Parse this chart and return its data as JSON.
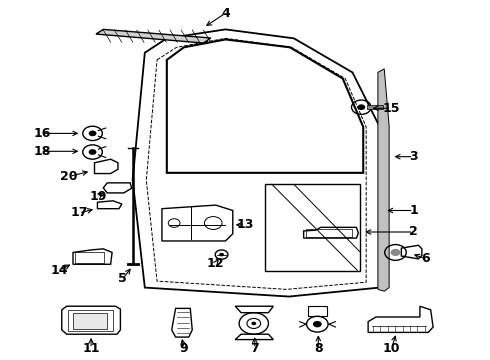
{
  "background_color": "#ffffff",
  "fig_width": 4.9,
  "fig_height": 3.6,
  "dpi": 100,
  "line_color": "#000000",
  "label_fontsize": 9,
  "label_fontweight": "bold",
  "label_positions": {
    "1": {
      "lbl": [
        0.845,
        0.415
      ],
      "arr": [
        0.785,
        0.415
      ]
    },
    "2": {
      "lbl": [
        0.845,
        0.355
      ],
      "arr": [
        0.74,
        0.355
      ]
    },
    "3": {
      "lbl": [
        0.845,
        0.565
      ],
      "arr": [
        0.8,
        0.565
      ]
    },
    "4": {
      "lbl": [
        0.46,
        0.965
      ],
      "arr": [
        0.415,
        0.925
      ]
    },
    "5": {
      "lbl": [
        0.25,
        0.225
      ],
      "arr": [
        0.27,
        0.26
      ]
    },
    "6": {
      "lbl": [
        0.87,
        0.28
      ],
      "arr": [
        0.84,
        0.295
      ]
    },
    "7": {
      "lbl": [
        0.52,
        0.03
      ],
      "arr": [
        0.52,
        0.07
      ]
    },
    "8": {
      "lbl": [
        0.65,
        0.03
      ],
      "arr": [
        0.65,
        0.075
      ]
    },
    "9": {
      "lbl": [
        0.375,
        0.03
      ],
      "arr": [
        0.37,
        0.065
      ]
    },
    "10": {
      "lbl": [
        0.8,
        0.03
      ],
      "arr": [
        0.81,
        0.075
      ]
    },
    "11": {
      "lbl": [
        0.185,
        0.03
      ],
      "arr": [
        0.185,
        0.068
      ]
    },
    "12": {
      "lbl": [
        0.44,
        0.268
      ],
      "arr": [
        0.45,
        0.285
      ]
    },
    "13": {
      "lbl": [
        0.5,
        0.375
      ],
      "arr": [
        0.475,
        0.375
      ]
    },
    "14": {
      "lbl": [
        0.12,
        0.248
      ],
      "arr": [
        0.148,
        0.268
      ]
    },
    "15": {
      "lbl": [
        0.8,
        0.7
      ],
      "arr": [
        0.755,
        0.7
      ]
    },
    "16": {
      "lbl": [
        0.085,
        0.63
      ],
      "arr": [
        0.165,
        0.63
      ]
    },
    "17": {
      "lbl": [
        0.16,
        0.408
      ],
      "arr": [
        0.195,
        0.42
      ]
    },
    "18": {
      "lbl": [
        0.085,
        0.58
      ],
      "arr": [
        0.165,
        0.58
      ]
    },
    "19": {
      "lbl": [
        0.2,
        0.455
      ],
      "arr": [
        0.215,
        0.47
      ]
    },
    "20": {
      "lbl": [
        0.14,
        0.51
      ],
      "arr": [
        0.185,
        0.525
      ]
    }
  }
}
